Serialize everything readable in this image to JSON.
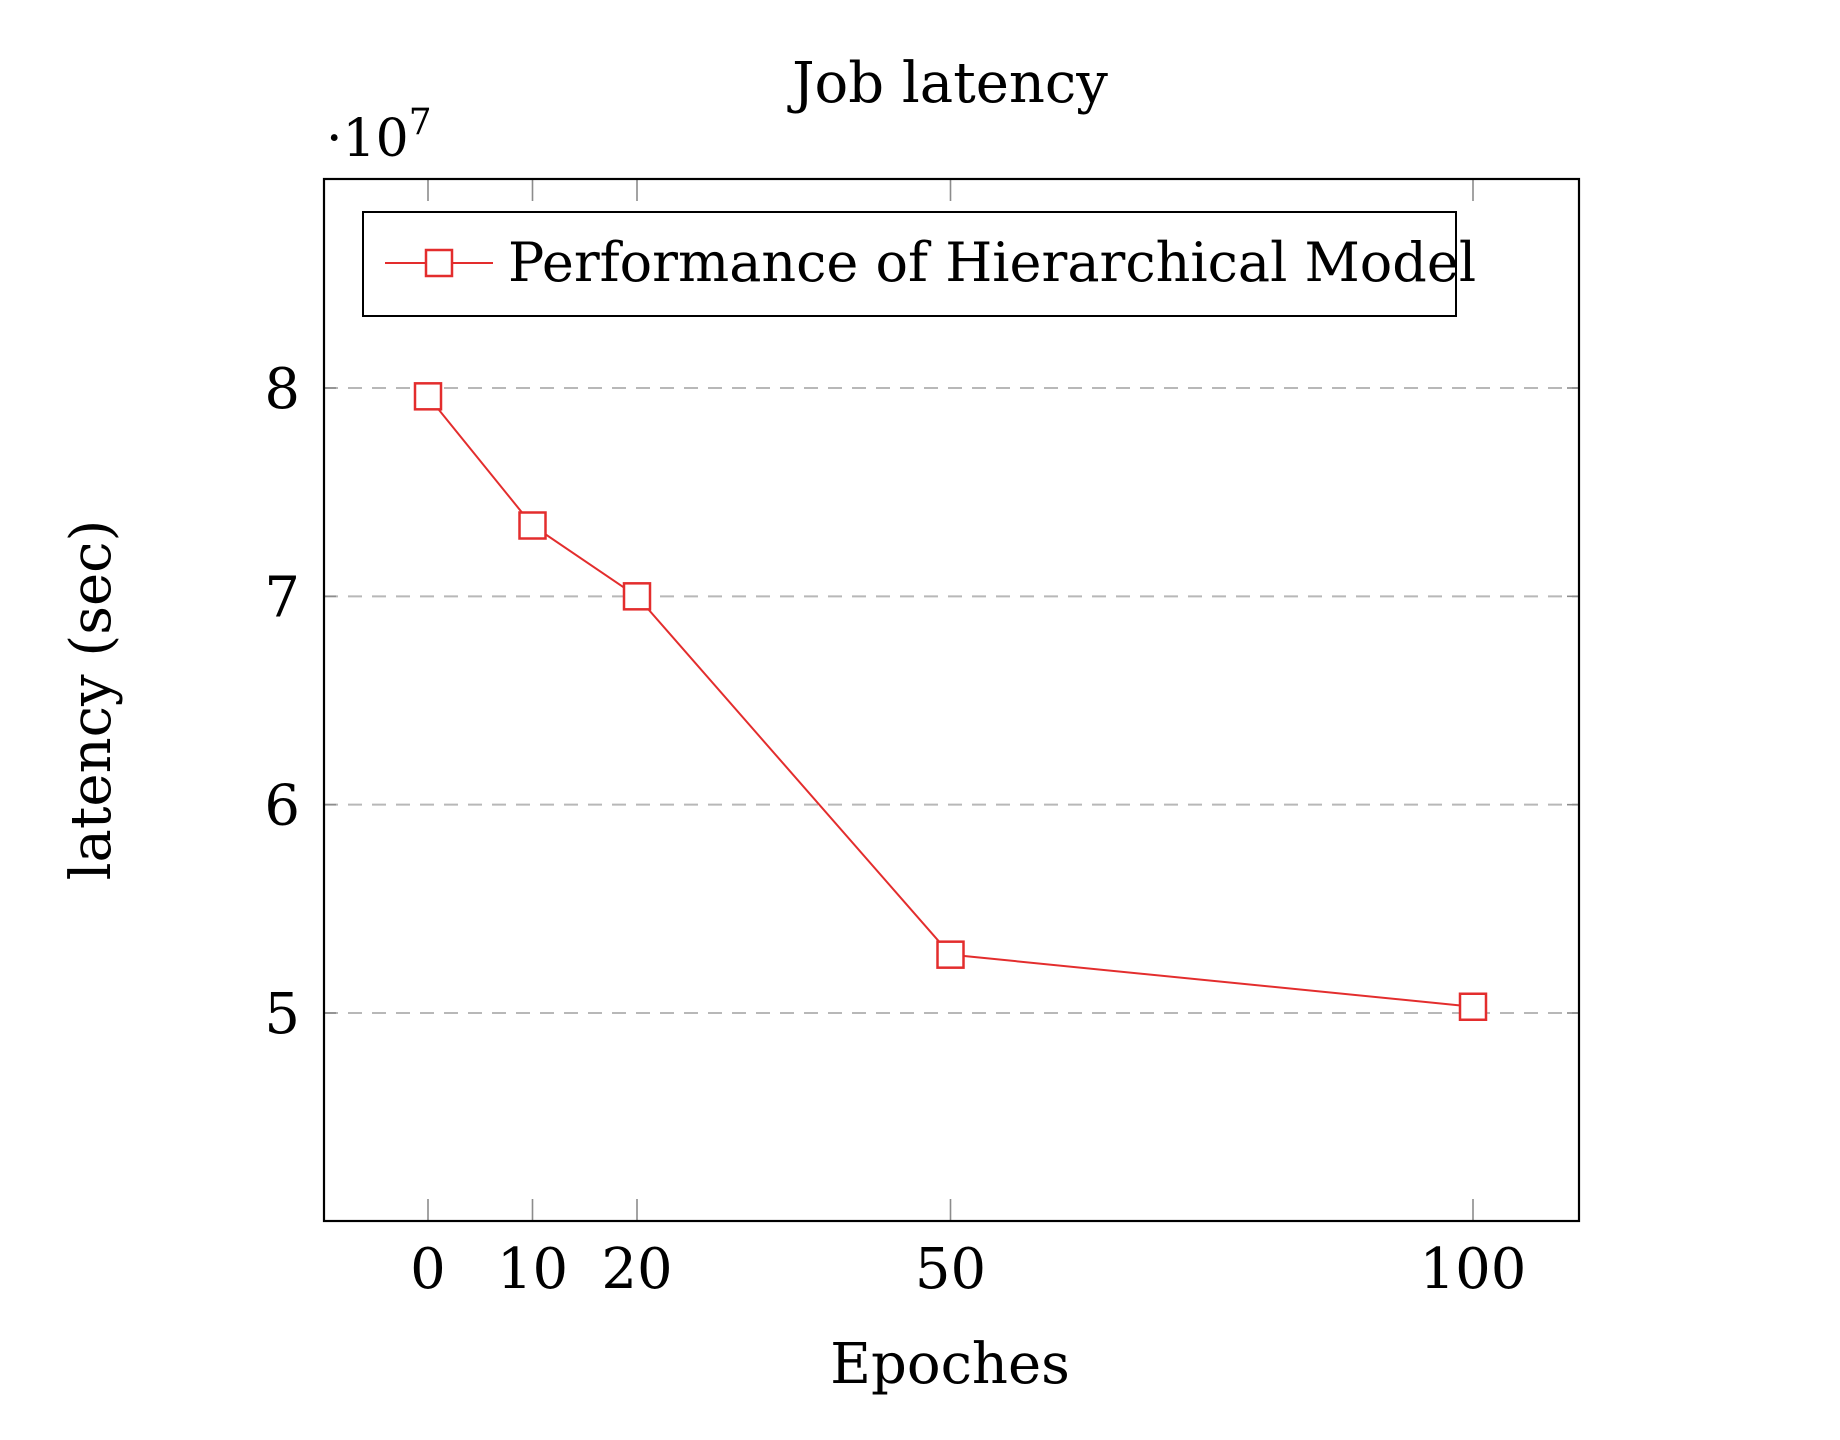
{
  "chart_data": {
    "type": "line",
    "title": "Job latency",
    "xlabel": "Epoches",
    "ylabel": "latency (sec)",
    "y_multiplier_label": "·10",
    "y_multiplier_exponent": "7",
    "x_ticks": [
      0,
      10,
      20,
      50,
      100
    ],
    "x_tick_labels": [
      "0",
      "10",
      "20",
      "50",
      "100"
    ],
    "y_ticks": [
      5,
      6,
      7,
      8
    ],
    "y_tick_labels": [
      "5",
      "6",
      "7",
      "8"
    ],
    "y_unit_scale": 10000000,
    "xlim": [
      0,
      100
    ],
    "ylim": [
      4.0,
      9.0
    ],
    "x_axis": "categorical-spaced (ticks at listed epochs)",
    "grid": "horizontal dashed",
    "legend_position": "top",
    "series": [
      {
        "name": "Performance of Hierarchical Model",
        "color": "#e32d2d",
        "marker": "open-square",
        "x": [
          0,
          10,
          20,
          50,
          100
        ],
        "y": [
          7.96,
          7.34,
          7.0,
          5.28,
          5.03
        ]
      }
    ]
  }
}
